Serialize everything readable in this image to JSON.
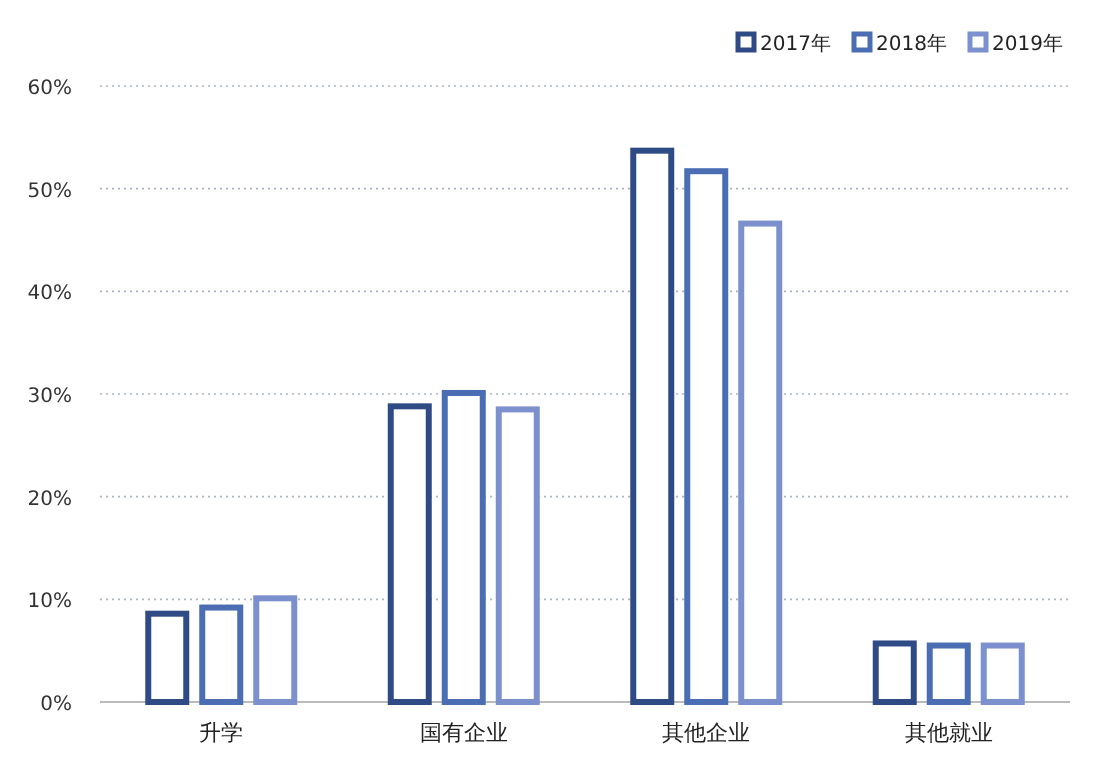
{
  "chart_data": {
    "type": "bar",
    "categories": [
      "升学",
      "国有企业",
      "其他企业",
      "其他就业"
    ],
    "series": [
      {
        "name": "2017年",
        "color": "#2f4b85",
        "values": [
          8.6,
          28.8,
          53.7,
          5.7
        ]
      },
      {
        "name": "2018年",
        "color": "#4a6db3",
        "values": [
          9.2,
          30.1,
          51.7,
          5.5
        ]
      },
      {
        "name": "2019年",
        "color": "#7b90cc",
        "values": [
          10.1,
          28.5,
          46.6,
          5.5
        ]
      }
    ],
    "ylim": [
      0,
      60
    ],
    "yticks": [
      {
        "value": 0,
        "label": "0%"
      },
      {
        "value": 10,
        "label": "10%"
      },
      {
        "value": 20,
        "label": "20%"
      },
      {
        "value": 30,
        "label": "30%"
      },
      {
        "value": 40,
        "label": "40%"
      },
      {
        "value": 50,
        "label": "50%"
      },
      {
        "value": 60,
        "label": "60%"
      }
    ],
    "grid": "y",
    "legend": "top right"
  }
}
